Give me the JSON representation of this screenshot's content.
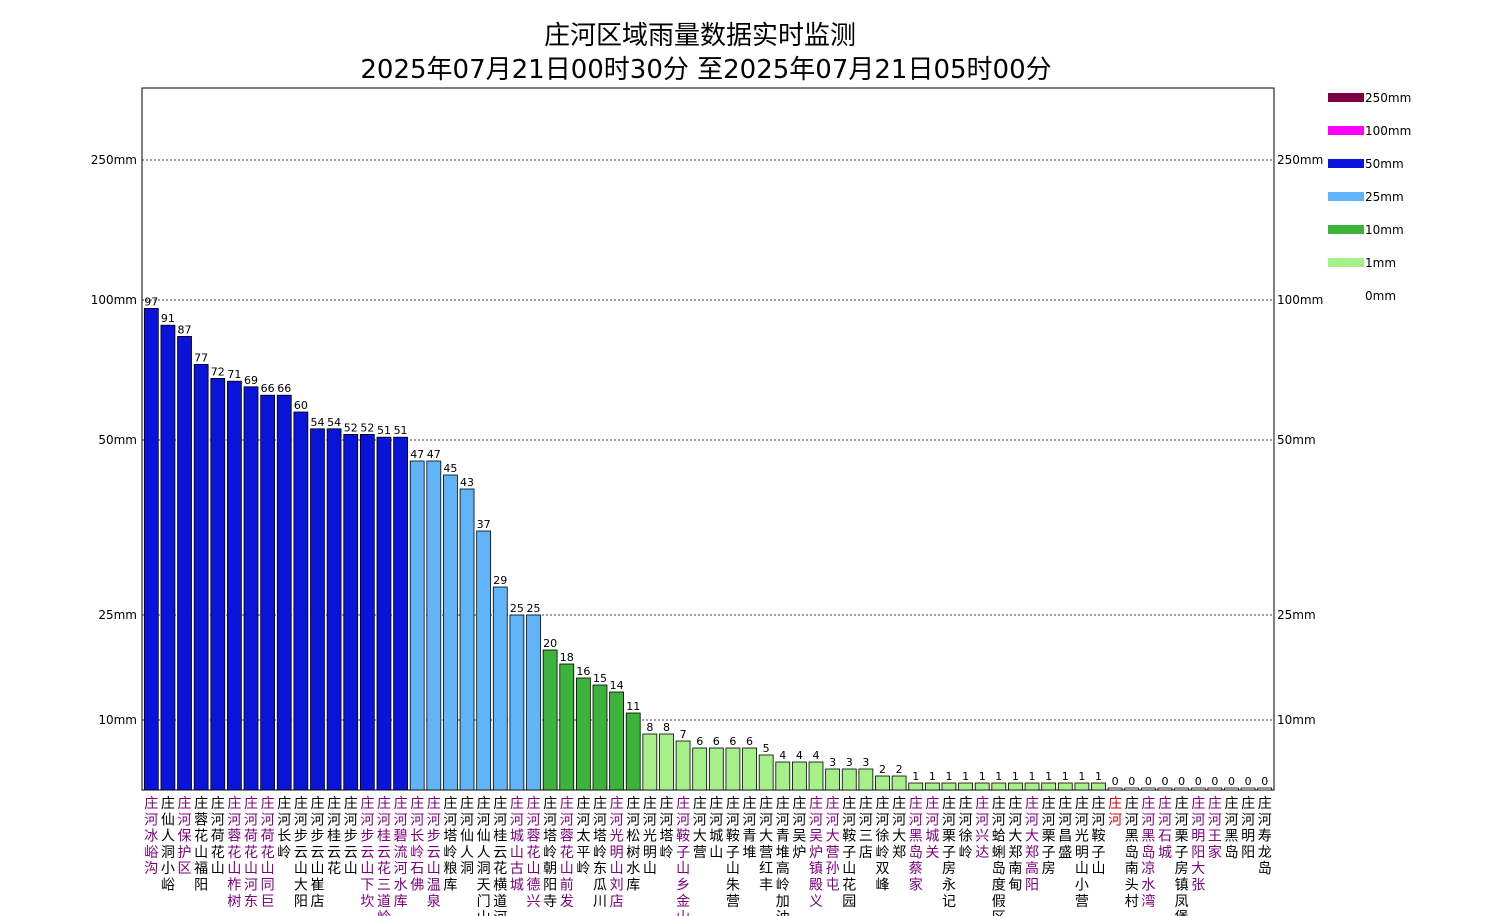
{
  "chart_data": {
    "type": "bar",
    "title": "庄河区域雨量数据实时监测",
    "subtitle": "2025年07月21日00时30分 至2025年07月21日05时00分",
    "y_scale": "custom-piecewise",
    "y_ticks": [
      {
        "value": 10,
        "label": "10mm"
      },
      {
        "value": 25,
        "label": "25mm"
      },
      {
        "value": 50,
        "label": "50mm"
      },
      {
        "value": 100,
        "label": "100mm"
      },
      {
        "value": 250,
        "label": "250mm"
      }
    ],
    "grid": true,
    "legend_position": "right",
    "legend": [
      {
        "label": "250mm",
        "color": "#7f0040"
      },
      {
        "label": "100mm",
        "color": "#ff00ff"
      },
      {
        "label": "50mm",
        "color": "#0a14d8"
      },
      {
        "label": "25mm",
        "color": "#62b4f8"
      },
      {
        "label": "10mm",
        "color": "#3cb43c"
      },
      {
        "label": "1mm",
        "color": "#a6f08a"
      },
      {
        "label": "0mm",
        "color": "#ffffff"
      }
    ],
    "label_colors": {
      "normal": "#000000",
      "purple": "#800080",
      "red": "#e00000"
    },
    "categories": [
      {
        "label": "庄河冰峪沟",
        "color": "purple"
      },
      {
        "label": "庄仙人洞小峪",
        "color": "normal"
      },
      {
        "label": "庄河保护区",
        "color": "purple"
      },
      {
        "label": "庄蓉花山福阳",
        "color": "normal"
      },
      {
        "label": "庄河荷花山",
        "color": "normal"
      },
      {
        "label": "庄河蓉花山柞树",
        "color": "purple"
      },
      {
        "label": "庄河荷花山河东",
        "color": "purple"
      },
      {
        "label": "庄河荷花山同巨",
        "color": "purple"
      },
      {
        "label": "庄河长岭",
        "color": "normal"
      },
      {
        "label": "庄河步云山大阳",
        "color": "normal"
      },
      {
        "label": "庄河步云山崔店",
        "color": "normal"
      },
      {
        "label": "庄河桂云花",
        "color": "normal"
      },
      {
        "label": "庄河步云山",
        "color": "normal"
      },
      {
        "label": "庄河步云山下坎",
        "color": "purple"
      },
      {
        "label": "庄河桂云花三道岭",
        "color": "purple"
      },
      {
        "label": "庄河碧流河水库",
        "color": "purple"
      },
      {
        "label": "庄河长岭石佛",
        "color": "purple"
      },
      {
        "label": "庄河步云山温泉",
        "color": "purple"
      },
      {
        "label": "庄河塔岭粮库",
        "color": "normal"
      },
      {
        "label": "庄河仙人洞",
        "color": "normal"
      },
      {
        "label": "庄河仙人洞天门山",
        "color": "normal"
      },
      {
        "label": "庄河桂云花横道河",
        "color": "normal"
      },
      {
        "label": "庄河城山古城",
        "color": "purple"
      },
      {
        "label": "庄河蓉花山德兴",
        "color": "purple"
      },
      {
        "label": "庄河塔岭朝阳寺",
        "color": "normal"
      },
      {
        "label": "庄河蓉花山前发",
        "color": "purple"
      },
      {
        "label": "庄河太平岭",
        "color": "normal"
      },
      {
        "label": "庄河塔岭东瓜川",
        "color": "normal"
      },
      {
        "label": "庄河光明山刘店",
        "color": "purple"
      },
      {
        "label": "庄河松树水库",
        "color": "normal"
      },
      {
        "label": "庄河光明山",
        "color": "normal"
      },
      {
        "label": "庄河塔岭",
        "color": "normal"
      },
      {
        "label": "庄河鞍子山乡金山",
        "color": "purple"
      },
      {
        "label": "庄河大营",
        "color": "normal"
      },
      {
        "label": "庄河城山",
        "color": "normal"
      },
      {
        "label": "庄河鞍子山朱营",
        "color": "normal"
      },
      {
        "label": "庄河青堆",
        "color": "normal"
      },
      {
        "label": "庄河大营红丰",
        "color": "normal"
      },
      {
        "label": "庄河青堆高岭加油",
        "color": "normal"
      },
      {
        "label": "庄河吴炉",
        "color": "normal"
      },
      {
        "label": "庄河吴炉镇殿义",
        "color": "purple"
      },
      {
        "label": "庄河大营孙屯",
        "color": "purple"
      },
      {
        "label": "庄河鞍子山花园",
        "color": "normal"
      },
      {
        "label": "庄河三店",
        "color": "normal"
      },
      {
        "label": "庄河徐岭双峰",
        "color": "normal"
      },
      {
        "label": "庄河大郑",
        "color": "normal"
      },
      {
        "label": "庄河黑岛蔡家",
        "color": "purple"
      },
      {
        "label": "庄河城关",
        "color": "purple"
      },
      {
        "label": "庄河栗子房永记",
        "color": "normal"
      },
      {
        "label": "庄河徐岭",
        "color": "normal"
      },
      {
        "label": "庄河兴达",
        "color": "purple"
      },
      {
        "label": "庄河蛤蜊岛度假区",
        "color": "normal"
      },
      {
        "label": "庄河大郑南甸",
        "color": "normal"
      },
      {
        "label": "庄河大郑高阳",
        "color": "purple"
      },
      {
        "label": "庄河栗子房",
        "color": "normal"
      },
      {
        "label": "庄河昌盛",
        "color": "normal"
      },
      {
        "label": "庄河光明山小营",
        "color": "normal"
      },
      {
        "label": "庄河鞍子山",
        "color": "normal"
      },
      {
        "label": "庄河",
        "color": "red"
      },
      {
        "label": "庄河黑岛南头村",
        "color": "normal"
      },
      {
        "label": "庄河黑岛凉水湾",
        "color": "purple"
      },
      {
        "label": "庄河石城",
        "color": "purple"
      },
      {
        "label": "庄河栗子房镇凤堡",
        "color": "normal"
      },
      {
        "label": "庄河明阳大张",
        "color": "purple"
      },
      {
        "label": "庄河王家",
        "color": "purple"
      },
      {
        "label": "庄河黑岛",
        "color": "normal"
      },
      {
        "label": "庄河明阳",
        "color": "normal"
      },
      {
        "label": "庄河寿龙岛",
        "color": "normal"
      }
    ],
    "values": [
      97,
      91,
      87,
      77,
      72,
      71,
      69,
      66,
      66,
      60,
      54,
      54,
      52,
      52,
      51,
      51,
      47,
      47,
      45,
      43,
      37,
      29,
      25,
      25,
      20,
      18,
      16,
      15,
      14,
      11,
      8,
      8,
      7,
      6,
      6,
      6,
      6,
      5,
      4,
      4,
      4,
      3,
      3,
      3,
      2,
      2,
      1,
      1,
      1,
      1,
      1,
      1,
      1,
      1,
      1,
      1,
      1,
      1,
      0,
      0,
      0,
      0,
      0,
      0,
      0,
      0,
      0,
      0
    ]
  }
}
